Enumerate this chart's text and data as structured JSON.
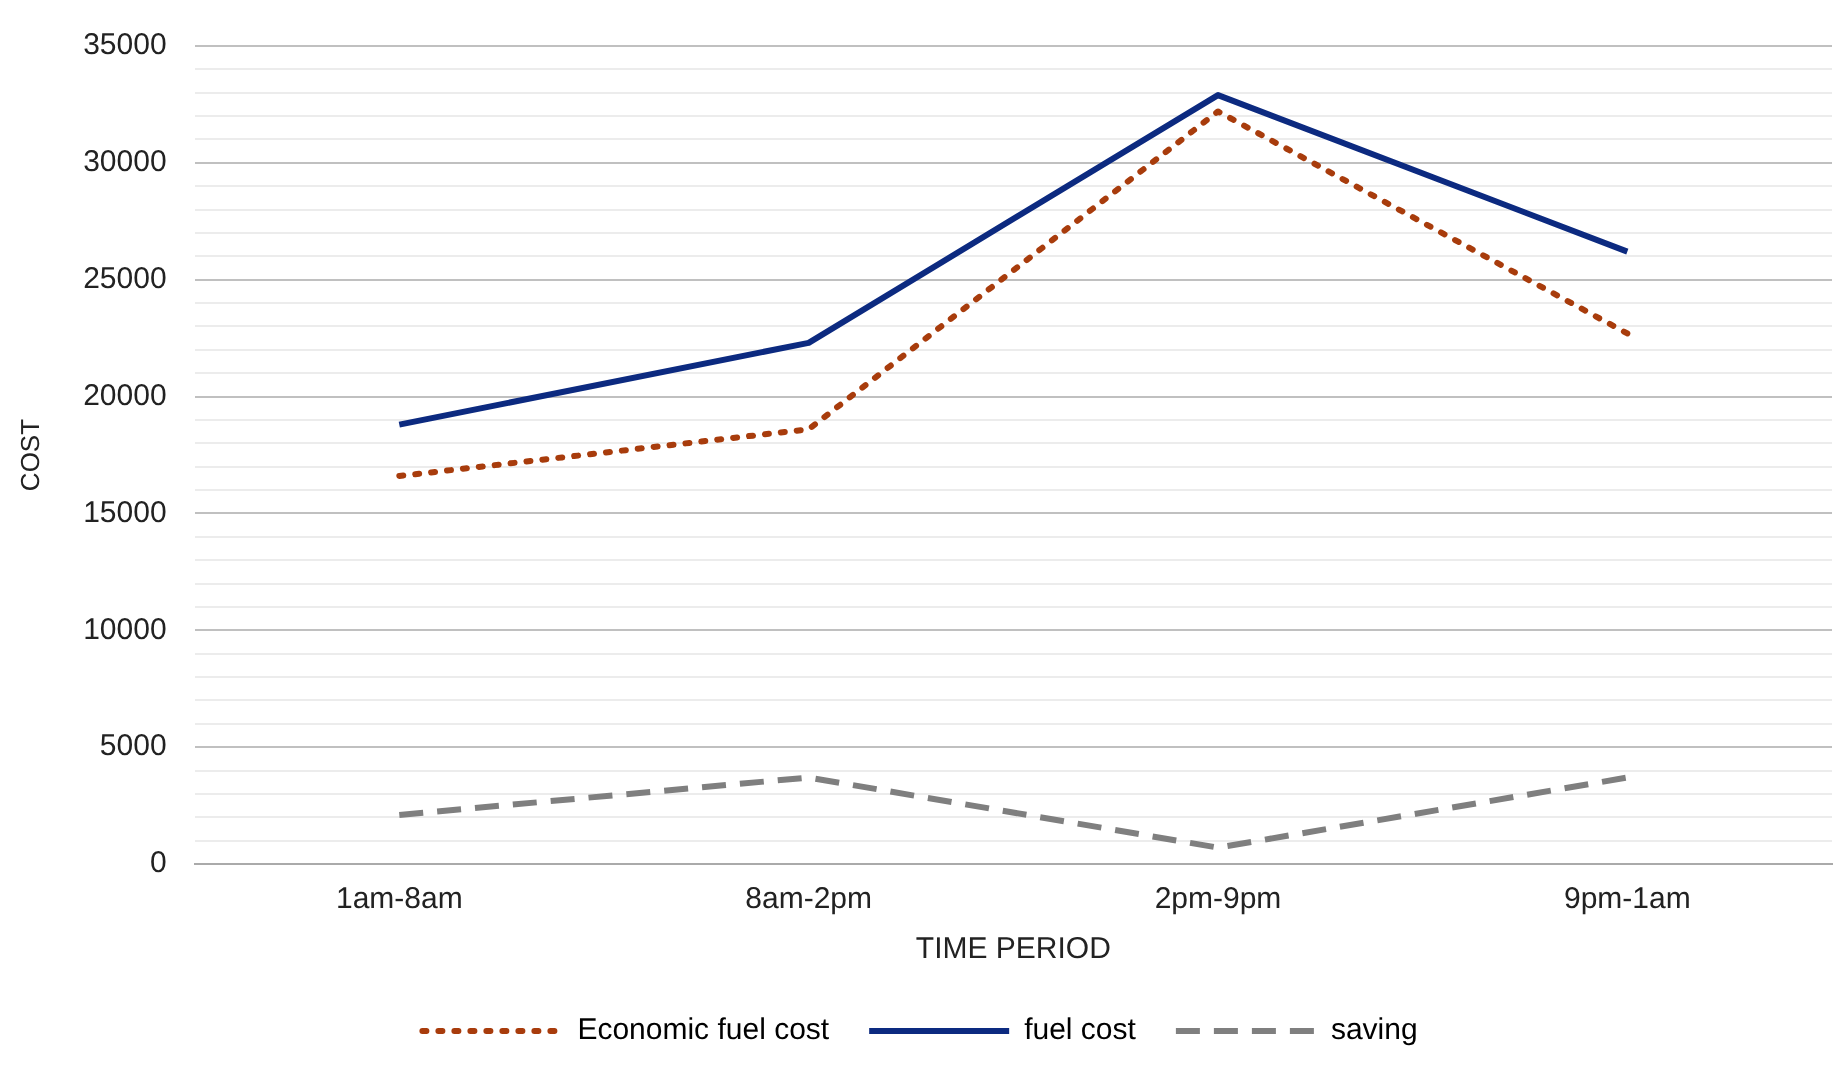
{
  "chart_data": {
    "type": "line",
    "xlabel": "TIME PERIOD",
    "ylabel": "COST",
    "categories": [
      "1am-8am",
      "8am-2pm",
      "2pm-9pm",
      "9pm-1am"
    ],
    "series": [
      {
        "name": "Economic fuel cost",
        "color": "#a83c0c",
        "line_style": "dotted",
        "values": [
          16600,
          18600,
          32200,
          22700
        ]
      },
      {
        "name": "fuel cost",
        "color": "#0c2a80",
        "line_style": "solid",
        "values": [
          18800,
          22300,
          32900,
          26200
        ]
      },
      {
        "name": "saving",
        "color": "#7f7f7f",
        "line_style": "dashed",
        "values": [
          2100,
          3700,
          700,
          3700
        ]
      }
    ],
    "ylim": [
      0,
      35000
    ],
    "yticks": [
      0,
      {
        "value": 1000,
        "label": null
      },
      {
        "value": 2000,
        "label": null
      },
      {
        "value": 3000,
        "label": null
      },
      {
        "value": 4000,
        "label": null
      },
      5000,
      {
        "value": 6000,
        "label": null
      },
      {
        "value": 7000,
        "label": null
      },
      {
        "value": 8000,
        "label": null
      },
      {
        "value": 9000,
        "label": null
      },
      10000,
      {
        "value": 11000,
        "label": null
      },
      {
        "value": 12000,
        "label": null
      },
      {
        "value": 13000,
        "label": null
      },
      {
        "value": 14000,
        "label": null
      },
      15000,
      {
        "value": 16000,
        "label": null
      },
      {
        "value": 17000,
        "label": null
      },
      {
        "value": 18000,
        "label": null
      },
      {
        "value": 19000,
        "label": null
      },
      20000,
      {
        "value": 21000,
        "label": null
      },
      {
        "value": 22000,
        "label": null
      },
      {
        "value": 23000,
        "label": null
      },
      {
        "value": 24000,
        "label": null
      },
      25000,
      {
        "value": 26000,
        "label": null
      },
      {
        "value": 27000,
        "label": null
      },
      {
        "value": 28000,
        "label": null
      },
      {
        "value": 29000,
        "label": null
      },
      30000,
      {
        "value": 31000,
        "label": null
      },
      {
        "value": 32000,
        "label": null
      },
      {
        "value": 33000,
        "label": null
      },
      {
        "value": 34000,
        "label": null
      },
      35000
    ],
    "grid": "y",
    "legend": "bottom",
    "marker": "none"
  }
}
